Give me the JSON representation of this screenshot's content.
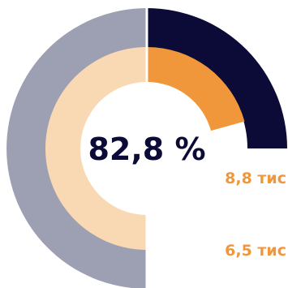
{
  "chart_data": {
    "type": "radial-bar",
    "center_label": "82,8 %",
    "rings": [
      {
        "display": "8,8 тис",
        "fraction": 0.25,
        "track_color": "#9d9fb2",
        "fill_color": "#0c0b38"
      },
      {
        "display": "6,5 тис",
        "fraction": 0.207,
        "track_color": "#f9d9b3",
        "fill_color": "#f0973b"
      }
    ],
    "label_color": "#f0973b",
    "center_color": "#0c0b38"
  }
}
